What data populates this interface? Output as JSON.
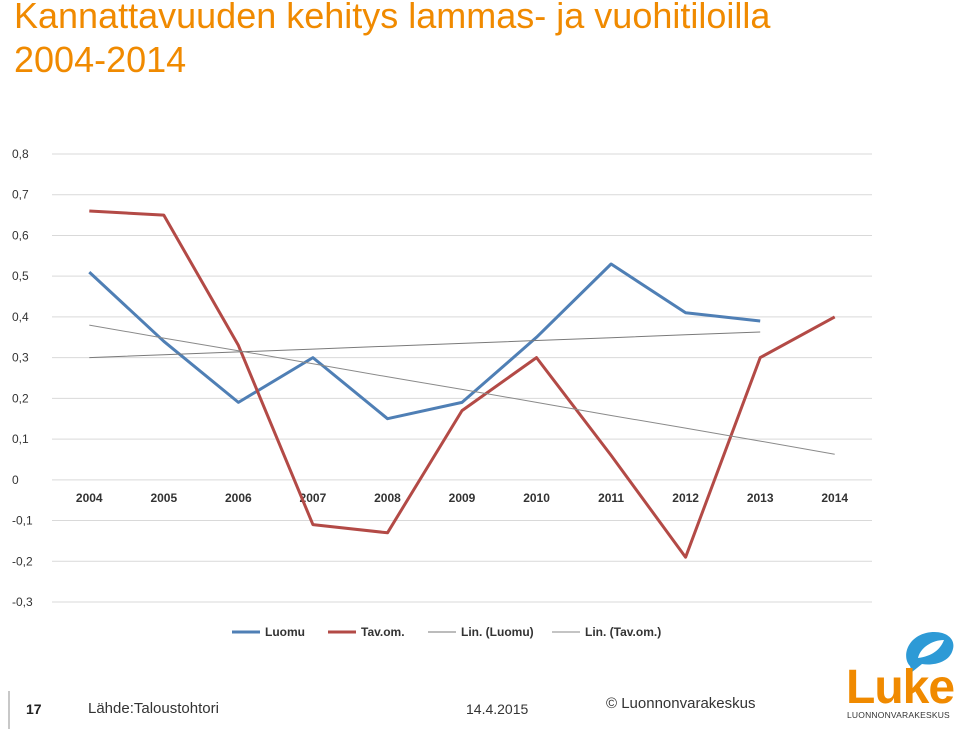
{
  "slide": {
    "title_line1": "Kannattavuuden kehitys lammas- ja vuohitiloilla",
    "title_line2": "2004-2014",
    "number": "17",
    "source": "Lähde:Taloustohtori",
    "date": "14.4.2015",
    "copyright": "© Luonnonvarakeskus"
  },
  "logo": {
    "word": "Luke",
    "subtitle": "LUONNONVARAKESKUS",
    "brand_color": "#f08a00",
    "icon": "speech-bubble-leaf-icon"
  },
  "chart_data": {
    "type": "line",
    "categories": [
      "2004",
      "2005",
      "2006",
      "2007",
      "2008",
      "2009",
      "2010",
      "2011",
      "2012",
      "2013",
      "2014"
    ],
    "ylim": [
      -0.3,
      0.8
    ],
    "yticks": [
      {
        "value": 0.8,
        "label": "0,8"
      },
      {
        "value": 0.7,
        "label": "0,7"
      },
      {
        "value": 0.6,
        "label": "0,6"
      },
      {
        "value": 0.5,
        "label": "0,5"
      },
      {
        "value": 0.4,
        "label": "0,4"
      },
      {
        "value": 0.3,
        "label": "0,3"
      },
      {
        "value": 0.2,
        "label": "0,2"
      },
      {
        "value": 0.1,
        "label": "0,1"
      },
      {
        "value": 0,
        "label": "0"
      },
      {
        "value": -0.1,
        "label": "-0,1"
      },
      {
        "value": -0.2,
        "label": "-0,2"
      },
      {
        "value": -0.3,
        "label": "-0,3"
      }
    ],
    "grid": true,
    "legend_position": "bottom",
    "series": [
      {
        "name": "Luomu",
        "color": "#4f7fb5",
        "width": 3,
        "values": [
          0.51,
          0.34,
          0.19,
          0.3,
          0.15,
          0.19,
          0.35,
          0.53,
          0.41,
          0.39,
          null
        ]
      },
      {
        "name": "Tav.om.",
        "color": "#b34a46",
        "width": 3,
        "values": [
          0.66,
          0.65,
          0.33,
          -0.11,
          -0.13,
          0.17,
          0.3,
          0.06,
          -0.19,
          0.3,
          0.4
        ]
      },
      {
        "name": "Lin. (Luomu)",
        "color": "#7a7a7a",
        "width": 1,
        "values": [
          0.3,
          0.307,
          0.314,
          0.321,
          0.328,
          0.335,
          0.342,
          0.349,
          0.356,
          0.363,
          0.37
        ],
        "end_index": 9
      },
      {
        "name": "Lin. (Tav.om.)",
        "color": "#8a8a8a",
        "width": 1,
        "values": [
          0.38,
          0.348,
          0.317,
          0.285,
          0.253,
          0.222,
          0.19,
          0.158,
          0.127,
          0.095,
          0.063
        ]
      }
    ]
  }
}
